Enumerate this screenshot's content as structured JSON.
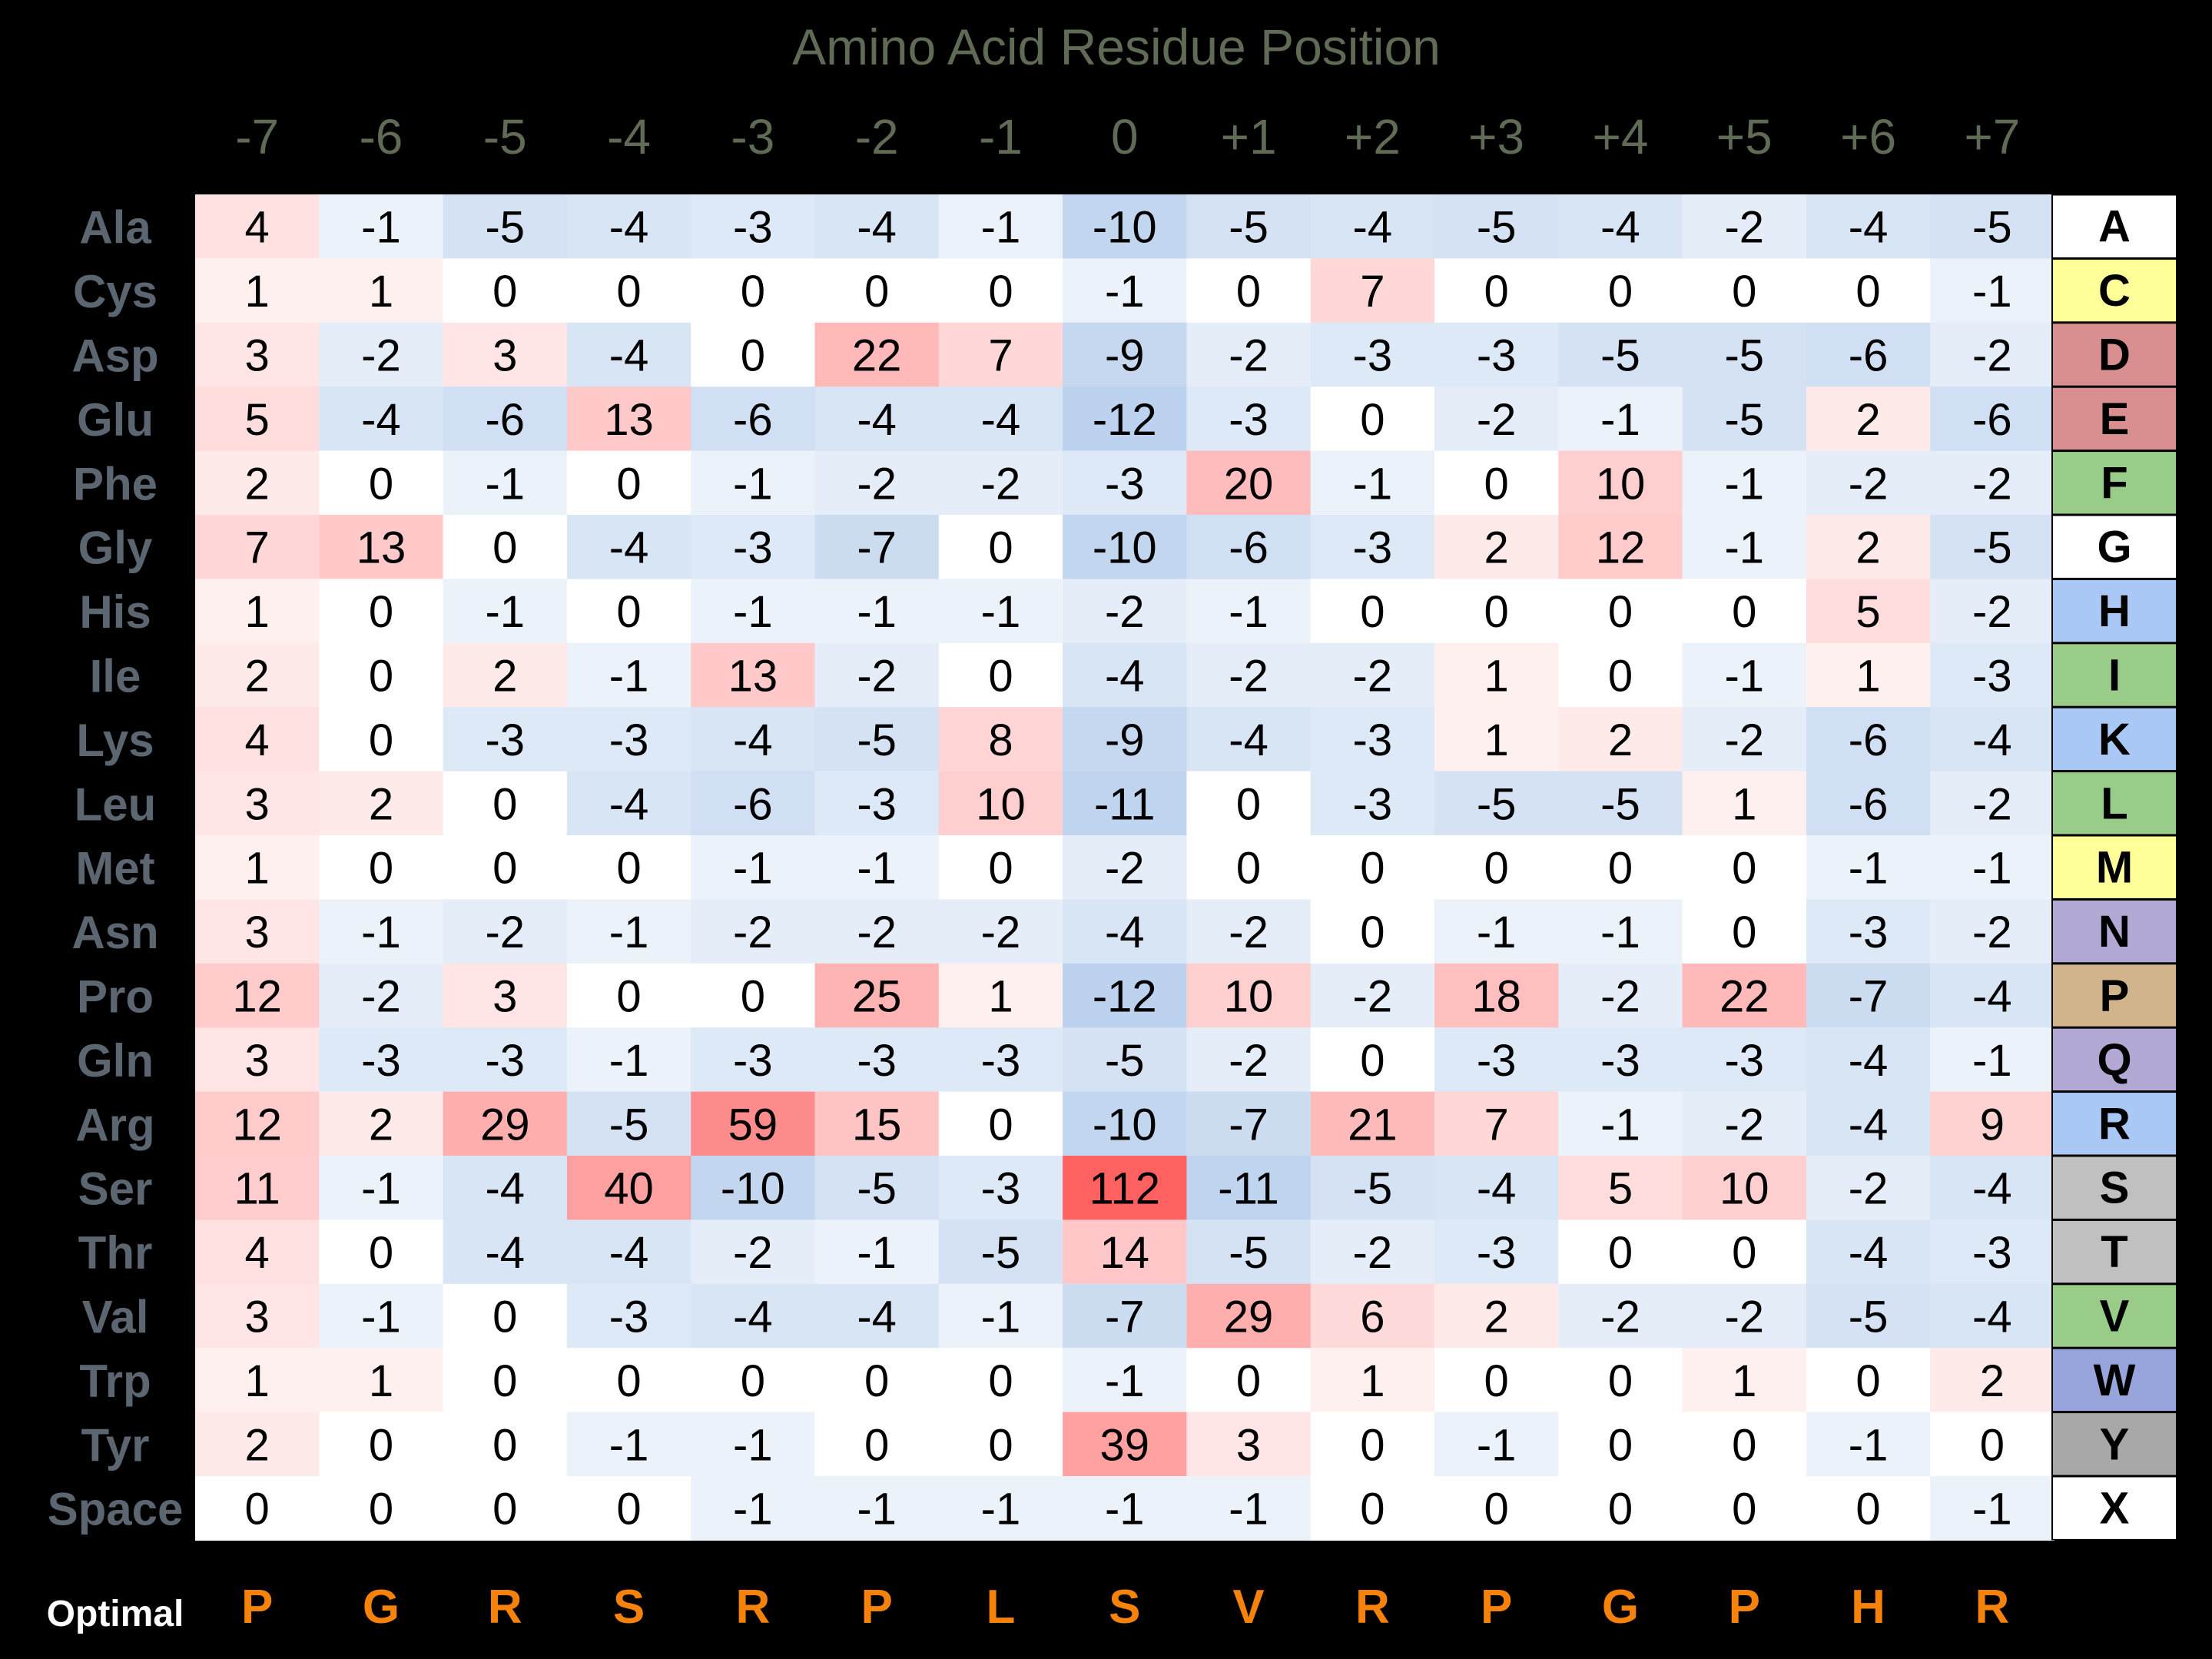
{
  "chart_data": {
    "type": "heatmap",
    "title": "Amino Acid Residue Position",
    "positions": [
      "-7",
      "-6",
      "-5",
      "-4",
      "-3",
      "-2",
      "-1",
      "0",
      "+1",
      "+2",
      "+3",
      "+4",
      "+5",
      "+6",
      "+7"
    ],
    "residues": [
      "Ala",
      "Cys",
      "Asp",
      "Glu",
      "Phe",
      "Gly",
      "His",
      "Ile",
      "Lys",
      "Leu",
      "Met",
      "Asn",
      "Pro",
      "Gln",
      "Arg",
      "Ser",
      "Thr",
      "Val",
      "Trp",
      "Tyr",
      "Space"
    ],
    "letters": [
      "A",
      "C",
      "D",
      "E",
      "F",
      "G",
      "H",
      "I",
      "K",
      "L",
      "M",
      "N",
      "P",
      "Q",
      "R",
      "S",
      "T",
      "V",
      "W",
      "Y",
      "X"
    ],
    "letter_colors": [
      "#ffffff",
      "#ffff99",
      "#d98f8f",
      "#d98f8f",
      "#99cc88",
      "#ffffff",
      "#aac8f5",
      "#99cc88",
      "#aac8f5",
      "#99cc88",
      "#ffff99",
      "#b3a7d4",
      "#d2b48c",
      "#b3a7d4",
      "#aac8f5",
      "#c0c0c0",
      "#c0c0c0",
      "#99cc88",
      "#98a4dc",
      "#a8a8a8",
      "#ffffff"
    ],
    "values": [
      [
        4,
        -1,
        -5,
        -4,
        -3,
        -4,
        -1,
        -10,
        -5,
        -4,
        -5,
        -4,
        -2,
        -4,
        -5
      ],
      [
        1,
        1,
        0,
        0,
        0,
        0,
        0,
        -1,
        0,
        7,
        0,
        0,
        0,
        0,
        -1
      ],
      [
        3,
        -2,
        3,
        -4,
        0,
        22,
        7,
        -9,
        -2,
        -3,
        -3,
        -5,
        -5,
        -6,
        -2
      ],
      [
        5,
        -4,
        -6,
        13,
        -6,
        -4,
        -4,
        -12,
        -3,
        0,
        -2,
        -1,
        -5,
        2,
        -6
      ],
      [
        2,
        0,
        -1,
        0,
        -1,
        -2,
        -2,
        -3,
        20,
        -1,
        0,
        10,
        -1,
        -2,
        -2
      ],
      [
        7,
        13,
        0,
        -4,
        -3,
        -7,
        0,
        -10,
        -6,
        -3,
        2,
        12,
        -1,
        2,
        -5
      ],
      [
        1,
        0,
        -1,
        0,
        -1,
        -1,
        -1,
        -2,
        -1,
        0,
        0,
        0,
        0,
        5,
        -2
      ],
      [
        2,
        0,
        2,
        -1,
        13,
        -2,
        0,
        -4,
        -2,
        -2,
        1,
        0,
        -1,
        1,
        -3
      ],
      [
        4,
        0,
        -3,
        -3,
        -4,
        -5,
        8,
        -9,
        -4,
        -3,
        1,
        2,
        -2,
        -6,
        -4
      ],
      [
        3,
        2,
        0,
        -4,
        -6,
        -3,
        10,
        -11,
        0,
        -3,
        -5,
        -5,
        1,
        -6,
        -2
      ],
      [
        1,
        0,
        0,
        0,
        -1,
        -1,
        0,
        -2,
        0,
        0,
        0,
        0,
        0,
        -1,
        -1
      ],
      [
        3,
        -1,
        -2,
        -1,
        -2,
        -2,
        -2,
        -4,
        -2,
        0,
        -1,
        -1,
        0,
        -3,
        -2
      ],
      [
        12,
        -2,
        3,
        0,
        0,
        25,
        1,
        -12,
        10,
        -2,
        18,
        -2,
        22,
        -7,
        -4
      ],
      [
        3,
        -3,
        -3,
        -1,
        -3,
        -3,
        -3,
        -5,
        -2,
        0,
        -3,
        -3,
        -3,
        -4,
        -1
      ],
      [
        12,
        2,
        29,
        -5,
        59,
        15,
        0,
        -10,
        -7,
        21,
        7,
        -1,
        -2,
        -4,
        9
      ],
      [
        11,
        -1,
        -4,
        40,
        -10,
        -5,
        -3,
        112,
        -11,
        -5,
        -4,
        5,
        10,
        -2,
        -4
      ],
      [
        4,
        0,
        -4,
        -4,
        -2,
        -1,
        -5,
        14,
        -5,
        -2,
        -3,
        0,
        0,
        -4,
        -3
      ],
      [
        3,
        -1,
        0,
        -3,
        -4,
        -4,
        -1,
        -7,
        29,
        6,
        2,
        -2,
        -2,
        -5,
        -4
      ],
      [
        1,
        1,
        0,
        0,
        0,
        0,
        0,
        -1,
        0,
        1,
        0,
        0,
        1,
        0,
        2
      ],
      [
        2,
        0,
        0,
        -1,
        -1,
        0,
        0,
        39,
        3,
        0,
        -1,
        0,
        0,
        -1,
        0
      ],
      [
        0,
        0,
        0,
        0,
        -1,
        -1,
        -1,
        -1,
        -1,
        0,
        0,
        0,
        0,
        0,
        -1
      ]
    ],
    "optimal_label": "Optimal",
    "optimal": [
      "P",
      "G",
      "R",
      "S",
      "R",
      "P",
      "L",
      "S",
      "V",
      "R",
      "P",
      "G",
      "P",
      "H",
      "R"
    ],
    "colors": {
      "background": "#000000",
      "title": "#5f6b55",
      "axis_labels": "#5f6b55",
      "residue_labels": "#5b6670",
      "optimal": "#f5820a",
      "positive": "#ff6060",
      "negative": "#bcd2ee"
    }
  }
}
